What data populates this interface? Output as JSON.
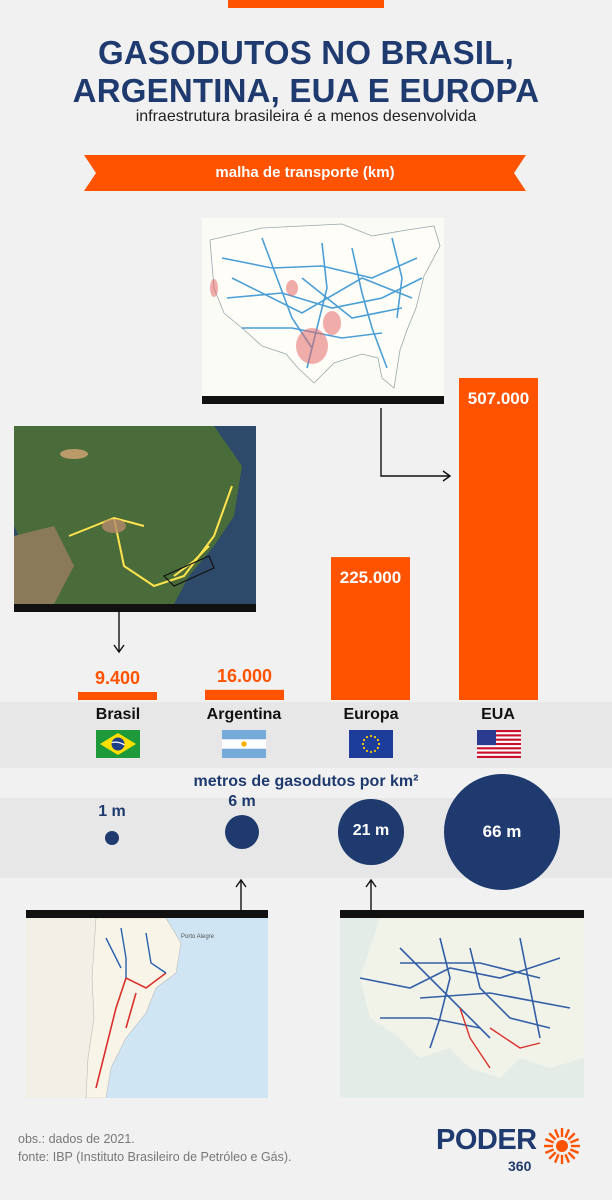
{
  "header": {
    "title_line1": "GASODUTOS NO BRASIL,",
    "title_line2": "ARGENTINA, EUA E EUROPA",
    "subtitle": "infraestrutura brasileira é a menos desenvolvida"
  },
  "banner": {
    "label": "malha de transporte (km)"
  },
  "colors": {
    "accent": "#ff5300",
    "navy": "#1e3a6e"
  },
  "chart_data": [
    {
      "type": "bar",
      "title": "malha de transporte (km)",
      "categories": [
        "Brasil",
        "Argentina",
        "Europa",
        "EUA"
      ],
      "values": [
        9400,
        16000,
        225000,
        507000
      ],
      "value_labels": [
        "9.400",
        "16.000",
        "225.000",
        "507.000"
      ]
    },
    {
      "type": "bubble",
      "title": "metros de gasodutos por km²",
      "categories": [
        "Brasil",
        "Argentina",
        "Europa",
        "EUA"
      ],
      "values": [
        1,
        6,
        21,
        66
      ],
      "value_labels": [
        "1 m",
        "6 m",
        "21 m",
        "66 m"
      ]
    }
  ],
  "flags": [
    "brazil-flag",
    "argentina-flag",
    "eu-flag",
    "usa-flag"
  ],
  "density": {
    "title": "metros de gasodutos por km²"
  },
  "footer": {
    "obs": "obs.: dados de 2021.",
    "source": "fonte: IBP (Instituto Brasileiro de Petróleo e Gás)."
  },
  "logo": {
    "name": "PODER",
    "number": "360"
  }
}
